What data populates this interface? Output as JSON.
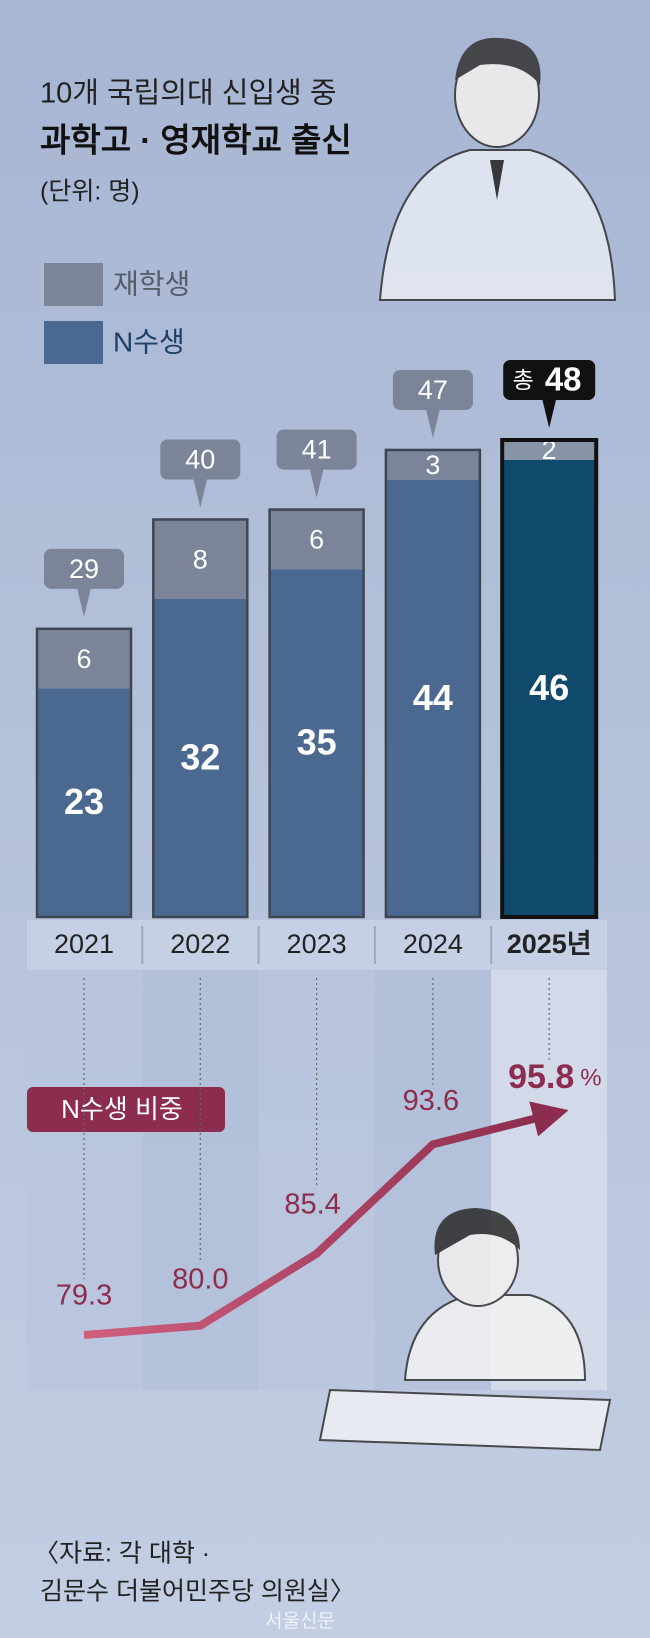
{
  "title": "10개 국립의대 신입생 중",
  "subtitle": "과학고 · 영재학교 출신",
  "unit_note": "(단위: 명)",
  "source": [
    "〈자료: 각 대학 ·",
    "김문수 더불어민주당 의원실〉"
  ],
  "credit": "서울신문",
  "chart_data": [
    {
      "type": "stacked_bar",
      "categories": [
        "2021",
        "2022",
        "2023",
        "2024",
        "2025년"
      ],
      "series": [
        {
          "name": "재학생",
          "color": "#7b8499",
          "values": [
            6,
            8,
            6,
            3,
            2
          ]
        },
        {
          "name": "N수생",
          "color": "#4a6890",
          "values": [
            23,
            32,
            35,
            44,
            46
          ]
        }
      ],
      "totals": [
        29,
        40,
        41,
        47,
        48
      ],
      "total_prefix": "총",
      "highlight": "2025년",
      "highlight_color": "#0f4a6d"
    },
    {
      "type": "line",
      "title": "N수생 비중",
      "values": [
        79.3,
        80.0,
        85.4,
        93.6,
        95.8
      ],
      "value_labels": [
        "79.3",
        "80.0",
        "85.4",
        "93.6",
        "95.8"
      ],
      "unit": "%",
      "color": "#8c2c4e"
    }
  ]
}
